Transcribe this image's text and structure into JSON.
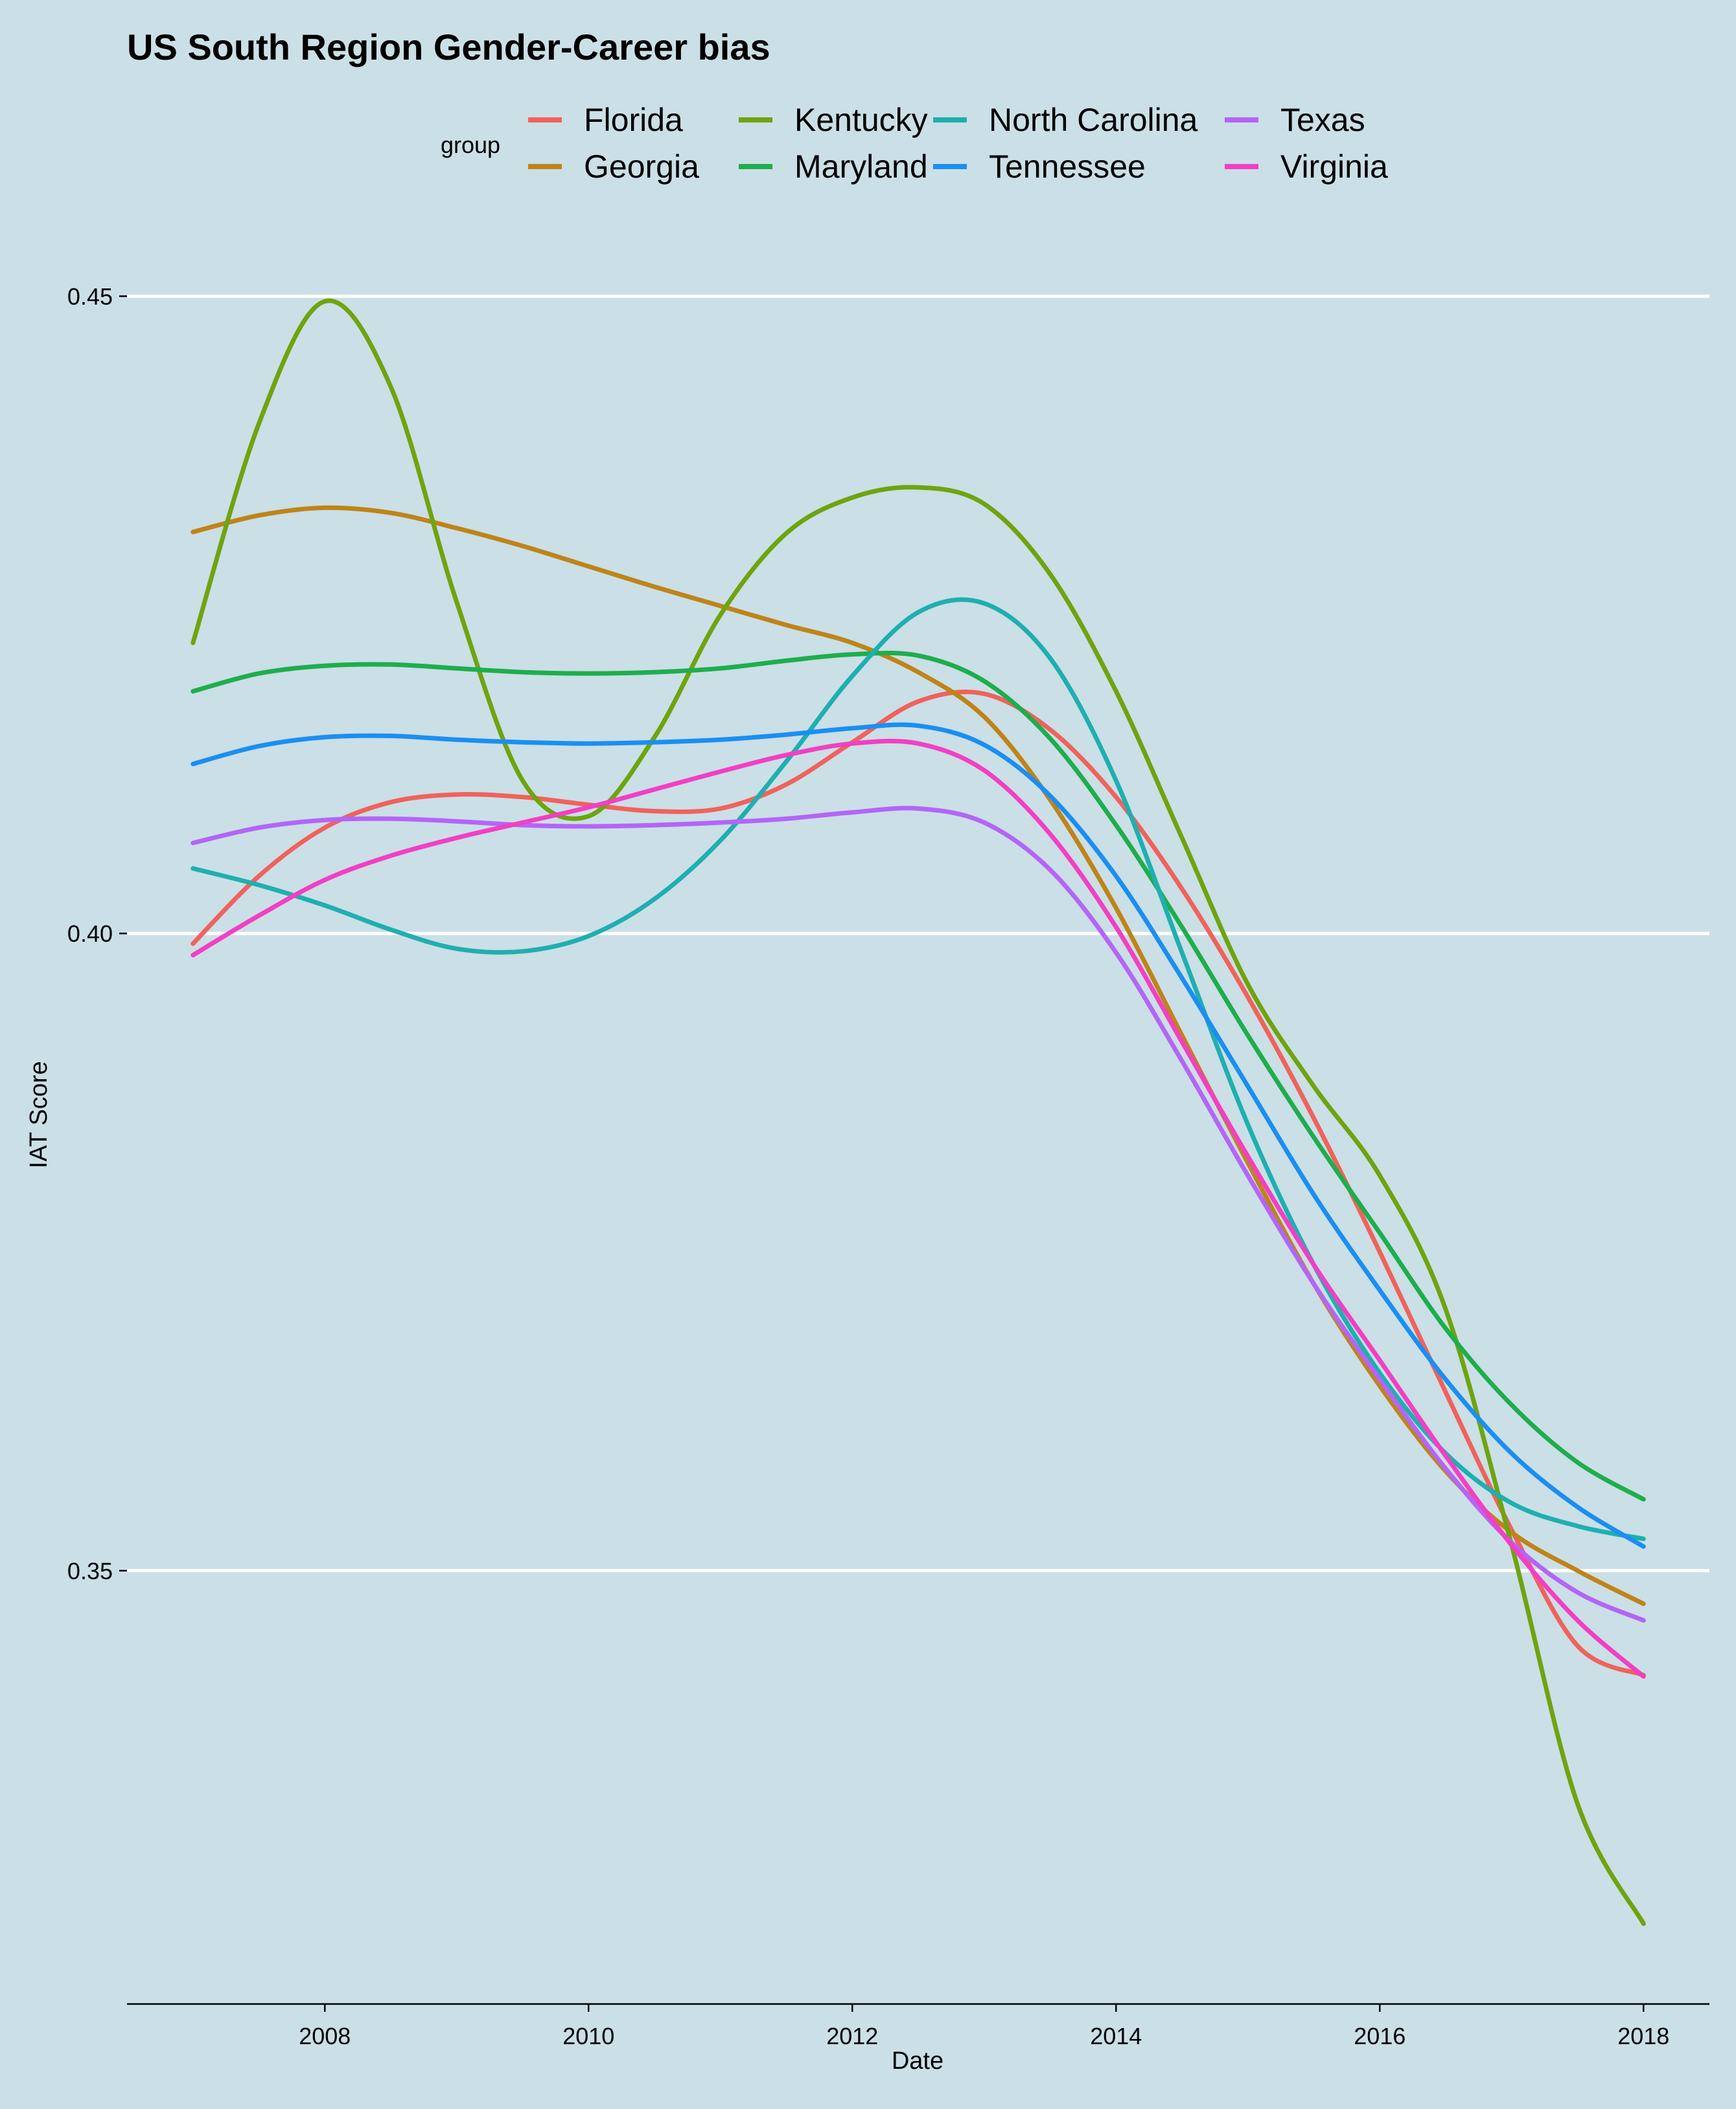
{
  "chart_data": {
    "type": "line",
    "title": "US South Region Gender-Career bias",
    "xlabel": "Date",
    "ylabel": "IAT Score",
    "legend_title": "group",
    "legend_position": "top",
    "grid": "horizontal major lines only",
    "xlim": [
      2006.5,
      2018.5
    ],
    "ylim": [
      0.316,
      0.4529
    ],
    "xticks": [
      2008,
      2010,
      2012,
      2014,
      2016,
      2018
    ],
    "xtick_labels": [
      "2008",
      "2010",
      "2012",
      "2014",
      "2016",
      "2018"
    ],
    "yticks": [
      0.35,
      0.4,
      0.45
    ],
    "ytick_labels": [
      "0.35",
      "0.40",
      "0.45"
    ],
    "x": [
      2007,
      2007.5,
      2008,
      2008.5,
      2009,
      2009.5,
      2010,
      2010.5,
      2011,
      2011.5,
      2012,
      2012.5,
      2013,
      2013.5,
      2014,
      2014.5,
      2015,
      2015.5,
      2016,
      2016.5,
      2017,
      2017.5,
      2018
    ],
    "series": [
      {
        "name": "Florida",
        "color": "#f0625c",
        "values": [
          0.3992,
          0.4045,
          0.4083,
          0.4103,
          0.4109,
          0.4107,
          0.4101,
          0.4096,
          0.4098,
          0.4117,
          0.415,
          0.4182,
          0.4188,
          0.416,
          0.4107,
          0.4035,
          0.395,
          0.3855,
          0.375,
          0.364,
          0.3532,
          0.3441,
          0.3418
        ]
      },
      {
        "name": "Georgia",
        "color": "#bf8418",
        "values": [
          0.4315,
          0.4328,
          0.4334,
          0.433,
          0.4318,
          0.4304,
          0.4288,
          0.4272,
          0.4257,
          0.4242,
          0.4228,
          0.4205,
          0.417,
          0.4105,
          0.402,
          0.392,
          0.382,
          0.3725,
          0.3645,
          0.3578,
          0.353,
          0.35,
          0.3474
        ]
      },
      {
        "name": "Kentucky",
        "color": "#6ea40f",
        "values": [
          0.4228,
          0.44,
          0.4496,
          0.4429,
          0.426,
          0.412,
          0.4092,
          0.4154,
          0.425,
          0.4314,
          0.4342,
          0.435,
          0.4337,
          0.4282,
          0.419,
          0.4075,
          0.396,
          0.388,
          0.381,
          0.3705,
          0.352,
          0.3317,
          0.3223
        ]
      },
      {
        "name": "Maryland",
        "color": "#1eae4c",
        "values": [
          0.419,
          0.4204,
          0.421,
          0.4211,
          0.4208,
          0.4205,
          0.4204,
          0.4205,
          0.4208,
          0.4214,
          0.4219,
          0.4218,
          0.4198,
          0.4153,
          0.4085,
          0.4005,
          0.392,
          0.384,
          0.3765,
          0.369,
          0.363,
          0.3585,
          0.3556
        ]
      },
      {
        "name": "North Carolina",
        "color": "#1fafb0",
        "values": [
          0.4051,
          0.4038,
          0.4022,
          0.4003,
          0.3988,
          0.3986,
          0.3998,
          0.4027,
          0.4073,
          0.4135,
          0.4202,
          0.4252,
          0.4259,
          0.4216,
          0.412,
          0.3985,
          0.385,
          0.374,
          0.3655,
          0.3592,
          0.3553,
          0.3535,
          0.3525
        ]
      },
      {
        "name": "Tennessee",
        "color": "#1a8ff2",
        "values": [
          0.4133,
          0.4147,
          0.4154,
          0.4155,
          0.4152,
          0.415,
          0.4149,
          0.415,
          0.4152,
          0.4156,
          0.4161,
          0.4163,
          0.4148,
          0.4108,
          0.4045,
          0.3965,
          0.388,
          0.3795,
          0.372,
          0.365,
          0.3592,
          0.355,
          0.3519
        ]
      },
      {
        "name": "Texas",
        "color": "#b465f6",
        "values": [
          0.4071,
          0.4083,
          0.4089,
          0.409,
          0.4088,
          0.4085,
          0.4084,
          0.4085,
          0.4087,
          0.409,
          0.4095,
          0.4098,
          0.4087,
          0.405,
          0.3985,
          0.39,
          0.381,
          0.3725,
          0.365,
          0.358,
          0.3522,
          0.3483,
          0.3461
        ]
      },
      {
        "name": "Virginia",
        "color": "#f23fc4",
        "values": [
          0.3983,
          0.4014,
          0.4042,
          0.4061,
          0.4075,
          0.4087,
          0.4099,
          0.4113,
          0.4127,
          0.414,
          0.4149,
          0.4149,
          0.4128,
          0.4078,
          0.4005,
          0.3915,
          0.3825,
          0.374,
          0.3665,
          0.359,
          0.352,
          0.3461,
          0.3417
        ]
      }
    ]
  }
}
